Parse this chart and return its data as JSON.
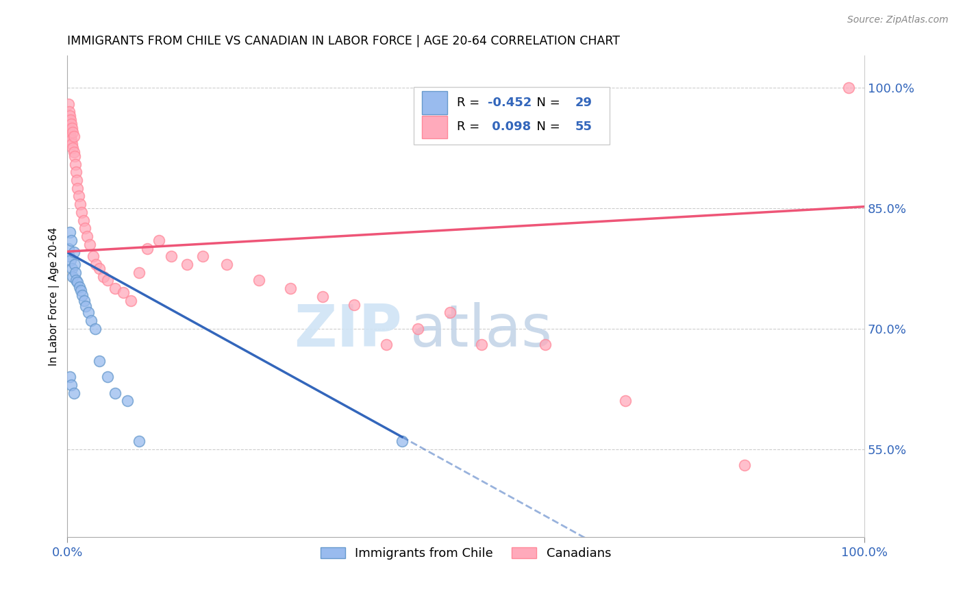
{
  "title": "IMMIGRANTS FROM CHILE VS CANADIAN IN LABOR FORCE | AGE 20-64 CORRELATION CHART",
  "source": "Source: ZipAtlas.com",
  "ylabel": "In Labor Force | Age 20-64",
  "xmin": 0.0,
  "xmax": 1.0,
  "ymin": 0.44,
  "ymax": 1.04,
  "ytick_positions": [
    0.55,
    0.7,
    0.85,
    1.0
  ],
  "ytick_labels": [
    "55.0%",
    "70.0%",
    "85.0%",
    "100.0%"
  ],
  "xtick_positions": [
    0.0,
    1.0
  ],
  "xtick_labels": [
    "0.0%",
    "100.0%"
  ],
  "blue_R": -0.452,
  "blue_N": 29,
  "pink_R": 0.098,
  "pink_N": 55,
  "blue_fill_color": "#99BBEE",
  "pink_fill_color": "#FFAABB",
  "blue_edge_color": "#6699CC",
  "pink_edge_color": "#FF8899",
  "blue_line_color": "#3366BB",
  "pink_line_color": "#EE5577",
  "blue_points_x": [
    0.001,
    0.002,
    0.003,
    0.004,
    0.005,
    0.006,
    0.007,
    0.008,
    0.009,
    0.01,
    0.011,
    0.013,
    0.015,
    0.017,
    0.019,
    0.021,
    0.023,
    0.026,
    0.03,
    0.035,
    0.04,
    0.05,
    0.06,
    0.075,
    0.09,
    0.42,
    0.003,
    0.005,
    0.008
  ],
  "blue_points_y": [
    0.8,
    0.79,
    0.82,
    0.785,
    0.81,
    0.775,
    0.765,
    0.795,
    0.78,
    0.77,
    0.76,
    0.758,
    0.752,
    0.748,
    0.742,
    0.735,
    0.728,
    0.72,
    0.71,
    0.7,
    0.66,
    0.64,
    0.62,
    0.61,
    0.56,
    0.56,
    0.64,
    0.63,
    0.62
  ],
  "pink_points_x": [
    0.001,
    0.001,
    0.002,
    0.002,
    0.003,
    0.003,
    0.004,
    0.004,
    0.005,
    0.005,
    0.006,
    0.006,
    0.007,
    0.007,
    0.008,
    0.008,
    0.009,
    0.01,
    0.011,
    0.012,
    0.013,
    0.014,
    0.016,
    0.018,
    0.02,
    0.022,
    0.025,
    0.028,
    0.032,
    0.036,
    0.04,
    0.045,
    0.05,
    0.06,
    0.07,
    0.08,
    0.09,
    0.1,
    0.115,
    0.13,
    0.15,
    0.17,
    0.2,
    0.24,
    0.28,
    0.32,
    0.36,
    0.4,
    0.44,
    0.48,
    0.52,
    0.6,
    0.7,
    0.85,
    0.98
  ],
  "pink_points_y": [
    0.98,
    0.96,
    0.97,
    0.95,
    0.965,
    0.945,
    0.96,
    0.94,
    0.955,
    0.935,
    0.95,
    0.93,
    0.945,
    0.925,
    0.94,
    0.92,
    0.915,
    0.905,
    0.895,
    0.885,
    0.875,
    0.865,
    0.855,
    0.845,
    0.835,
    0.825,
    0.815,
    0.805,
    0.79,
    0.78,
    0.775,
    0.765,
    0.76,
    0.75,
    0.745,
    0.735,
    0.77,
    0.8,
    0.81,
    0.79,
    0.78,
    0.79,
    0.78,
    0.76,
    0.75,
    0.74,
    0.73,
    0.68,
    0.7,
    0.72,
    0.68,
    0.68,
    0.61,
    0.53,
    1.0
  ],
  "watermark_zip": "ZIP",
  "watermark_atlas": "atlas",
  "legend_blue_label": "Immigrants from Chile",
  "legend_pink_label": "Canadians",
  "blue_line_x_start": 0.0,
  "blue_line_x_end": 0.42,
  "blue_line_y_start": 0.795,
  "blue_line_y_end": 0.565,
  "pink_line_x_start": 0.0,
  "pink_line_x_end": 1.0,
  "pink_line_y_start": 0.796,
  "pink_line_y_end": 0.852
}
